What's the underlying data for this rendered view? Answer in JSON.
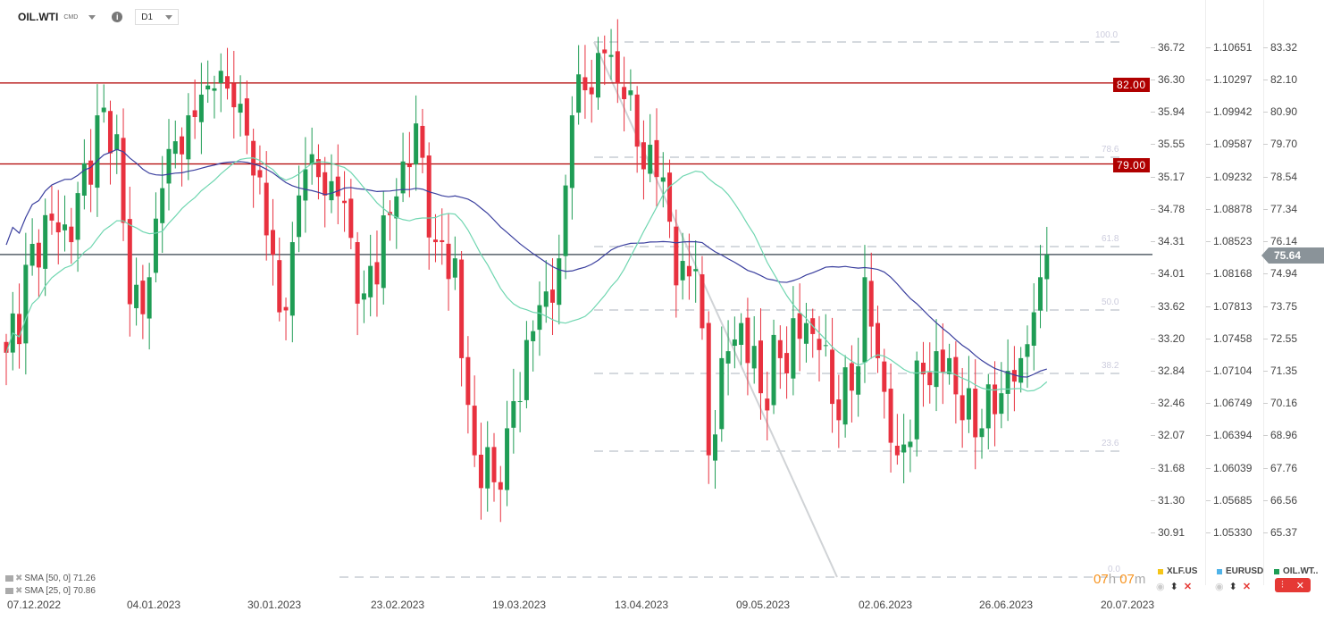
{
  "header": {
    "symbol": "OIL.WTI",
    "type": "CMD",
    "timeframe": "D1"
  },
  "axes": {
    "xlf": [
      "36.72",
      "36.30",
      "35.94",
      "35.55",
      "35.17",
      "34.78",
      "34.31",
      "34.01",
      "33.62",
      "33.20",
      "32.84",
      "32.46",
      "32.07",
      "31.68",
      "31.30",
      "30.91"
    ],
    "eurusd": [
      "1.10651",
      "1.10297",
      "1.09942",
      "1.09587",
      "1.09232",
      "1.08878",
      "1.08523",
      "1.08168",
      "1.07813",
      "1.07458",
      "1.07104",
      "1.06749",
      "1.06394",
      "1.06039",
      "1.05685",
      "1.05330"
    ],
    "oil": [
      "83.32",
      "82.10",
      "80.90",
      "79.70",
      "78.54",
      "77.34",
      "76.14",
      "74.94",
      "73.75",
      "72.55",
      "71.35",
      "70.16",
      "68.96",
      "67.76",
      "66.56",
      "65.37"
    ]
  },
  "levels": {
    "l1": "82.00",
    "l2": "79.00",
    "current": "75.64"
  },
  "fib": {
    "f100": "100.0",
    "f786": "78.6",
    "f618": "61.8",
    "f50": "50.0",
    "f382": "38.2",
    "f236": "23.6",
    "f0": "0.0"
  },
  "dates": [
    "07.12.2022",
    "04.01.2023",
    "30.01.2023",
    "23.02.2023",
    "19.03.2023",
    "13.04.2023",
    "09.05.2023",
    "02.06.2023",
    "26.06.2023",
    "20.07.2023"
  ],
  "indicators": {
    "sma50": "SMA [50, 0] 71.26",
    "sma25": "SMA [25, 0] 70.86"
  },
  "timer": {
    "h": "07",
    "hu": "h",
    "m": "07",
    "mu": "m"
  },
  "legend": {
    "xlf": "XLF.US",
    "eurusd": "EURUSD",
    "oil": "OIL.WT.."
  },
  "colors": {
    "up": "#1f9d55",
    "down": "#e8313f",
    "sma50": "#3a3f9e",
    "sma25": "#6fd6b0",
    "level": "#b00000"
  },
  "chart_data": {
    "type": "candlestick",
    "candles": 161,
    "close_keyframes": [
      [
        0,
        72.0
      ],
      [
        6,
        77.1
      ],
      [
        10,
        76.1
      ],
      [
        14,
        80.8
      ],
      [
        17,
        80.1
      ],
      [
        19,
        73.8
      ],
      [
        22,
        74.8
      ],
      [
        24,
        78.1
      ],
      [
        28,
        80.8
      ],
      [
        32,
        81.8
      ],
      [
        35,
        81.1
      ],
      [
        39,
        78.5
      ],
      [
        42,
        73.5
      ],
      [
        44,
        76.1
      ],
      [
        46,
        78.8
      ],
      [
        51,
        77.8
      ],
      [
        55,
        74.2
      ],
      [
        59,
        77.1
      ],
      [
        63,
        80.5
      ],
      [
        66,
        76.1
      ],
      [
        69,
        75.5
      ],
      [
        70,
        71.8
      ],
      [
        72,
        68.2
      ],
      [
        75,
        67.2
      ],
      [
        77,
        69.2
      ],
      [
        81,
        72.8
      ],
      [
        85,
        75.5
      ],
      [
        87,
        80.8
      ],
      [
        92,
        83.1
      ],
      [
        95,
        81.4
      ],
      [
        98,
        78.8
      ],
      [
        101,
        78.5
      ],
      [
        103,
        74.5
      ],
      [
        106,
        75.1
      ],
      [
        108,
        68.2
      ],
      [
        110,
        71.8
      ],
      [
        113,
        73.1
      ],
      [
        116,
        70.5
      ],
      [
        119,
        71.8
      ],
      [
        123,
        73.1
      ],
      [
        125,
        72.1
      ],
      [
        128,
        69.5
      ],
      [
        131,
        71.5
      ],
      [
        132,
        74.8
      ],
      [
        134,
        71.8
      ],
      [
        137,
        68.2
      ],
      [
        141,
        71.2
      ],
      [
        145,
        71.8
      ],
      [
        147,
        69.5
      ],
      [
        150,
        69.2
      ],
      [
        153,
        70.5
      ],
      [
        156,
        71.8
      ],
      [
        158,
        73.5
      ],
      [
        159,
        74.8
      ],
      [
        160,
        75.64
      ]
    ],
    "sma_periods": [
      50,
      25
    ]
  }
}
